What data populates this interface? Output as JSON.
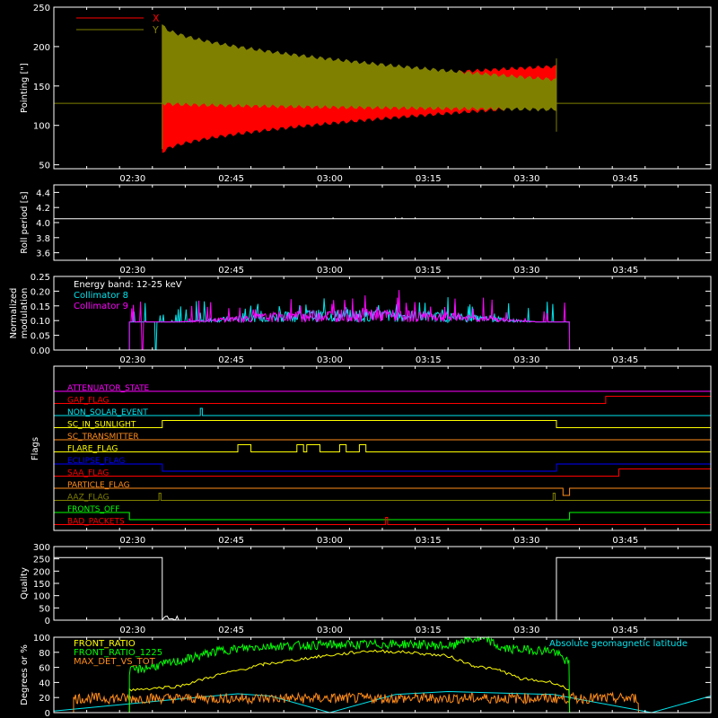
{
  "colors": {
    "background": "#000000",
    "axis": "#ffffff",
    "pointing_x": "#ff0000",
    "pointing_y": "#808000",
    "collimator8": "#00e5ee",
    "collimator9": "#ff00ff",
    "yellow": "#ffff00",
    "green": "#00ff00",
    "orange": "#ff8c1a",
    "cyan": "#00e5ee",
    "blue": "#0000ff",
    "red": "#ff0000",
    "magenta": "#ff00ff"
  },
  "time_axis": {
    "tick_labels": [
      "02:30",
      "02:45",
      "03:00",
      "03:15",
      "03:30",
      "03:45"
    ],
    "tick_minutes": [
      150,
      165,
      180,
      195,
      210,
      225
    ],
    "range_minutes": [
      138,
      238
    ]
  },
  "chart_data": [
    {
      "id": "pointing",
      "type": "line",
      "ylabel": "Pointing [\"]",
      "ylim": [
        45,
        250
      ],
      "yticks": [
        50,
        100,
        150,
        200,
        250
      ],
      "legend": [
        "X",
        "Y"
      ],
      "legend_placement": "top-left",
      "baseline": 128,
      "active_range_minutes": [
        154.5,
        214.5
      ],
      "series": [
        {
          "name": "X",
          "min_start": 65,
          "max_start": 128,
          "min_end": 125,
          "max_end": 175
        },
        {
          "name": "Y",
          "min_start": 128,
          "max_start": 228,
          "min_end": 120,
          "max_end": 158
        }
      ]
    },
    {
      "id": "roll_period",
      "type": "line",
      "ylabel": "Roll period [s]",
      "ylim": [
        3.5,
        4.5
      ],
      "yticks": [
        3.6,
        3.8,
        4.0,
        4.2,
        4.4
      ],
      "tick_labels": [
        "3.6",
        "3.8",
        "4.0",
        "4.2",
        "4.4"
      ],
      "value": 4.05
    },
    {
      "id": "modulation",
      "type": "line",
      "ylabel": "Normalized modulation",
      "ylim": [
        0,
        0.25
      ],
      "yticks": [
        0,
        0.05,
        0.1,
        0.15,
        0.2,
        0.25
      ],
      "tick_labels": [
        "0.00",
        "0.05",
        "0.10",
        "0.15",
        "0.20",
        "0.25"
      ],
      "annotation": "Energy band: 12-25 keV",
      "series": [
        {
          "name": "Collimator 8",
          "baseline": 0.1,
          "dip_minute": 153.5
        },
        {
          "name": "Collimator 9",
          "baseline": 0.1,
          "dip_minute": 151.5
        }
      ],
      "active_range_minutes": [
        149.5,
        216.5
      ]
    },
    {
      "id": "flags",
      "type": "line",
      "ylabel": "Flags",
      "flags": [
        {
          "name": "ATTENUATOR_STATE",
          "color": "#ff00ff",
          "steps": []
        },
        {
          "name": "GAP_FLAG",
          "color": "#ff0000",
          "steps": [
            [
              222,
              1
            ]
          ]
        },
        {
          "name": "NON_SOLAR_EVENT",
          "color": "#00e5ee",
          "steps": [
            [
              160.3,
              1
            ],
            [
              160.6,
              0
            ]
          ]
        },
        {
          "name": "SC_IN_SUNLIGHT",
          "color": "#ffff00",
          "steps": [
            [
              154.5,
              1
            ],
            [
              214.5,
              0
            ]
          ]
        },
        {
          "name": "SC_TRANSMITTER",
          "color": "#ff8c1a",
          "steps": []
        },
        {
          "name": "FLARE_FLAG",
          "color": "#ffff00",
          "steps": [
            [
              166,
              1
            ],
            [
              168,
              0
            ],
            [
              175,
              1
            ],
            [
              176,
              0
            ],
            [
              176.5,
              1
            ],
            [
              178.5,
              0
            ],
            [
              181.5,
              1
            ],
            [
              182.5,
              0
            ],
            [
              184.5,
              1
            ],
            [
              185.5,
              0
            ]
          ]
        },
        {
          "name": "ECLIPSE_FLAG",
          "color": "#0000ff",
          "steps": [
            [
              154.5,
              -1
            ],
            [
              214.5,
              0
            ]
          ]
        },
        {
          "name": "SAA_FLAG",
          "color": "#ff0000",
          "steps": [
            [
              224,
              1
            ]
          ]
        },
        {
          "name": "PARTICLE_FLAG",
          "color": "#ff8c1a",
          "steps": [
            [
              215.5,
              -1
            ],
            [
              216.5,
              0
            ]
          ]
        },
        {
          "name": "AAZ_FLAG",
          "color": "#808000",
          "steps": [
            [
              154,
              1
            ],
            [
              154.3,
              0
            ],
            [
              214,
              1
            ],
            [
              214.3,
              0
            ]
          ]
        },
        {
          "name": "FRONTS_OFF",
          "color": "#00ff00",
          "steps": [
            [
              149.5,
              -1
            ],
            [
              216.5,
              0
            ]
          ]
        },
        {
          "name": "BAD_PACKETS",
          "color": "#ff0000",
          "steps": [
            [
              188.5,
              1
            ],
            [
              188.8,
              0
            ]
          ]
        }
      ],
      "labels": [
        "ATTENUATOR_STATE",
        "GAP_FLAG",
        "NON_SOLAR_EVENT",
        "SC_IN_SUNLIGHT",
        "SC_TRANSMITTER",
        "FLARE_FLAG",
        "ECLIPSE_FLAG",
        "SAA_FLAG",
        "PARTICLE_FLAG",
        "AAZ_FLAG",
        "FRONTS_OFF",
        "BAD_PACKETS"
      ]
    },
    {
      "id": "quality",
      "type": "line",
      "ylabel": "Quality",
      "ylim": [
        0,
        300
      ],
      "yticks": [
        0,
        50,
        100,
        150,
        200,
        250,
        300
      ],
      "tick_labels": [
        "0",
        "50",
        "100",
        "150",
        "200",
        "250",
        "300"
      ],
      "high_value": 255,
      "high_ranges_minutes": [
        [
          138,
          154.5
        ],
        [
          214.5,
          238
        ]
      ]
    },
    {
      "id": "ratios",
      "type": "line",
      "ylabel": "Degrees or %",
      "ylim": [
        0,
        100
      ],
      "yticks": [
        0,
        20,
        40,
        60,
        80,
        100
      ],
      "tick_labels": [
        "0",
        "20",
        "40",
        "60",
        "80",
        "100"
      ],
      "legend_placement": "top-left",
      "series": [
        {
          "name": "FRONT_RATIO",
          "color": "#ffff00"
        },
        {
          "name": "FRONT_RATIO_1225",
          "color": "#00ff00"
        },
        {
          "name": "MAX_DET_VS_TOT",
          "color": "#ff8c1a"
        },
        {
          "name": "Absolute geomagnetic latitude",
          "color": "#00e5ee"
        }
      ]
    }
  ]
}
